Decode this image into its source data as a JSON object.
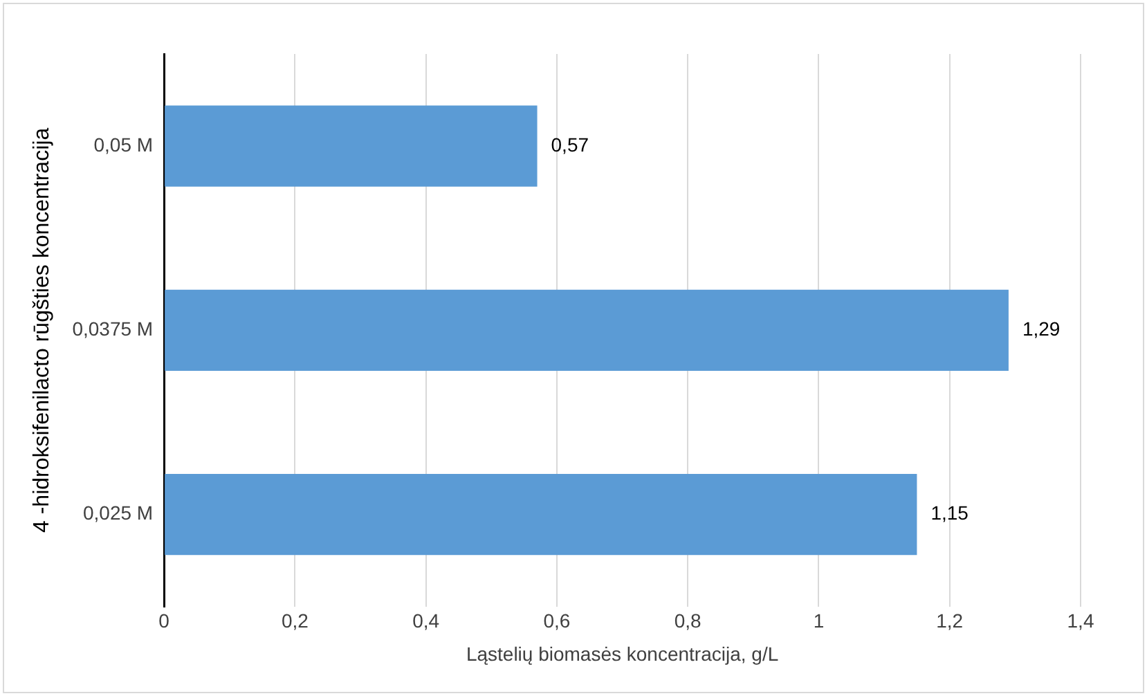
{
  "chart_data": {
    "type": "bar",
    "orientation": "horizontal",
    "xlabel": "Ląstelių biomasės koncentracija, g/L",
    "ylabel": "4 -hidroksifenilacto rūgšties koncentracija",
    "categories": [
      "0,05 M",
      "0,0375 M",
      "0,025 M"
    ],
    "values": [
      0.57,
      1.29,
      1.15
    ],
    "value_labels": [
      "0,57",
      "1,29",
      "1,15"
    ],
    "color": "#5b9bd5",
    "xlim": [
      0,
      1.4
    ],
    "xticks": [
      0,
      {
        "value": 0.2,
        "label": "0,2"
      },
      {
        "value": 0.4,
        "label": "0,4"
      },
      {
        "value": 0.6,
        "label": "0,6"
      },
      {
        "value": 0.8,
        "label": "0,8"
      },
      1,
      {
        "value": 1.2,
        "label": "1,2"
      },
      {
        "value": 1.4,
        "label": "1,4"
      }
    ],
    "grid": "x",
    "legend": false
  }
}
